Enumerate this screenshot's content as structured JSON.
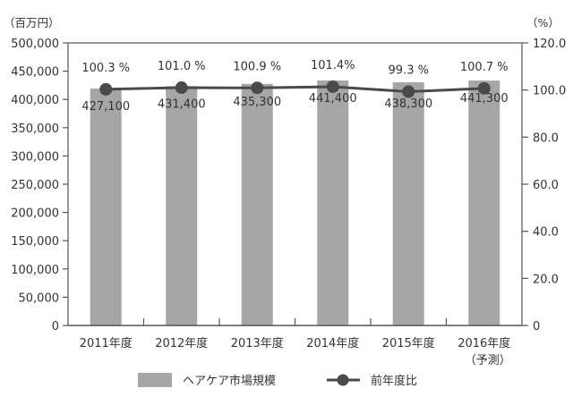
{
  "chart_data": {
    "type": "bar",
    "title": "",
    "categories": [
      "2011年度",
      "2012年度",
      "2013年度",
      "2014年度",
      "2015年度",
      "2016年度"
    ],
    "category_sublabels": [
      "",
      "",
      "",
      "",
      "",
      "（予測）"
    ],
    "series": [
      {
        "name": "ヘアケア市場規模",
        "type": "bar",
        "axis": "left",
        "color": "#a6a6a8",
        "values": [
          427100,
          431400,
          435300,
          441400,
          438300,
          441300
        ],
        "labels": [
          "427,100",
          "431,400",
          "435,300",
          "441,400",
          "438,300",
          "441,300"
        ]
      },
      {
        "name": "前年度比",
        "type": "line",
        "axis": "right",
        "color": "#4a4a4c",
        "values": [
          100.3,
          101.0,
          100.9,
          101.4,
          99.3,
          100.7
        ],
        "labels": [
          "100.3 %",
          "101.0 %",
          "100.9 %",
          "101.4%",
          "99.3 %",
          "100.7 %"
        ]
      }
    ],
    "left_axis": {
      "unit": "（百万円）",
      "ylim": [
        0,
        500000
      ],
      "ticks": [
        "0",
        "50,000",
        "100,000",
        "150,000",
        "200,000",
        "250,000",
        "300,000",
        "350,000",
        "400,000",
        "450,000",
        "500,000"
      ]
    },
    "right_axis": {
      "unit": "（%）",
      "ylim": [
        0,
        120
      ],
      "ticks": [
        "0",
        "20.0",
        "40.0",
        "60.0",
        "80.0",
        "100.0",
        "120.0"
      ]
    },
    "xlabel": "",
    "ylabel": "百万円",
    "grid": false,
    "legend_position": "bottom"
  }
}
